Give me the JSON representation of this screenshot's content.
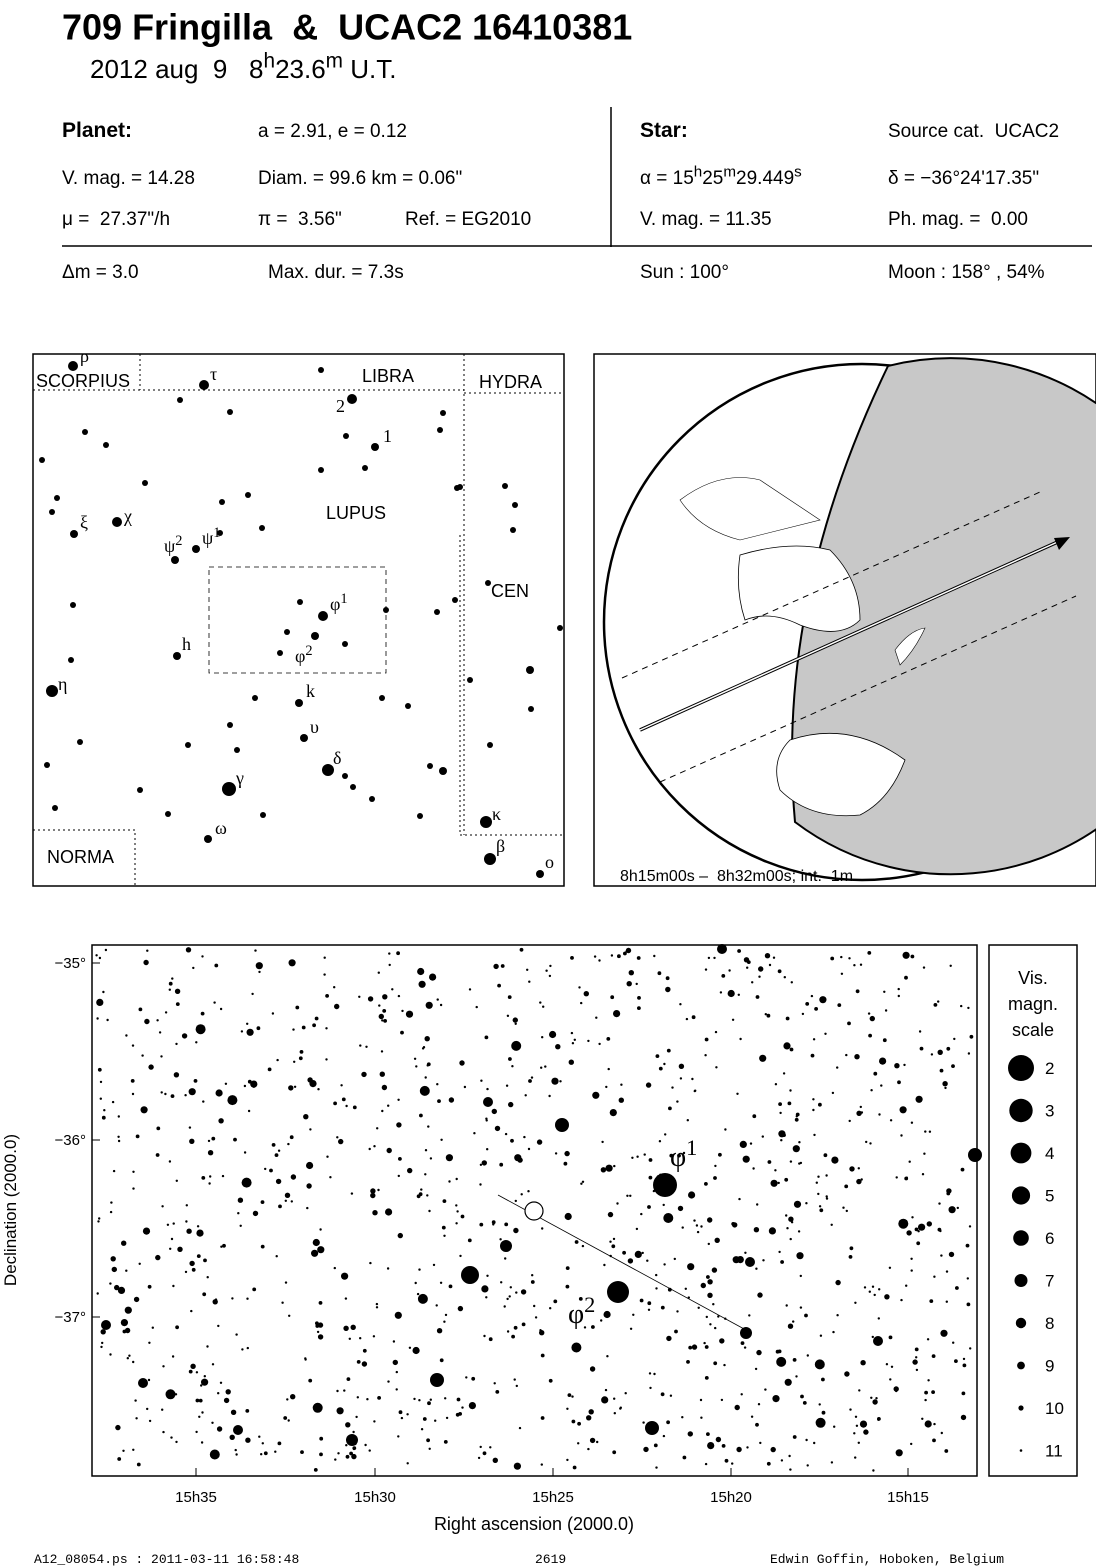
{
  "header": {
    "title": "709 Fringilla  &  UCAC2 16410381",
    "subtitle": [
      "2012 aug  9   8",
      "h",
      "23.6",
      "m",
      " U.T."
    ]
  },
  "info": {
    "planet": [
      [
        "Planet:",
        "a = 2.91, e = 0.12"
      ],
      [
        "V. mag. = 14.28",
        "Diam. = 99.6 km = 0.06\""
      ],
      [
        "μ =  27.37\"/h",
        "π =  3.56\"",
        "Ref. = EG2010"
      ]
    ],
    "star": [
      [
        "Star:",
        "Source cat.  UCAC2"
      ],
      [
        [
          "α = 15",
          "h",
          "25",
          "m",
          "29.449",
          "s"
        ],
        "δ = −36°24'17.35\""
      ],
      [
        "V. mag. = 11.35",
        "Ph. mag. =  0.00"
      ]
    ],
    "bottom": [
      "Δm = 3.0",
      "Max. dur. = 7.3s",
      "Sun : 100°",
      "Moon : 158° , 54%"
    ]
  },
  "const_map": {
    "regions": [
      "SCORPIUS",
      "LIBRA",
      "HYDRA",
      "LUPUS",
      "CEN",
      "NORMA"
    ],
    "stars": [
      [
        "ρ"
      ],
      [
        "τ"
      ],
      [
        "2"
      ],
      [
        "1"
      ],
      [
        "ξ"
      ],
      [
        "χ"
      ],
      [
        "ψ",
        "2"
      ],
      [
        "ψ",
        "1"
      ],
      [
        "φ",
        "1"
      ],
      [
        "φ",
        "2"
      ],
      [
        "h"
      ],
      [
        "η"
      ],
      [
        "k"
      ],
      [
        "υ"
      ],
      [
        "δ"
      ],
      [
        "γ"
      ],
      [
        "ω"
      ],
      [
        "κ"
      ],
      [
        "β"
      ],
      [
        "ο"
      ]
    ]
  },
  "globe": {
    "caption": "8h15m00s –  8h32m00s; int.  1m"
  },
  "chart": {
    "y_labels": [
      "−35°",
      "−36°",
      "−37°"
    ],
    "x_labels": [
      "15h35",
      "15h30",
      "15h25",
      "15h20",
      "15h15"
    ],
    "x_title": "Right ascension (2000.0)",
    "y_title": "Declination (2000.0)",
    "stars": [
      [
        "φ",
        "1"
      ],
      [
        "φ",
        "2"
      ]
    ]
  },
  "scale": {
    "title": [
      "Vis.",
      "magn.",
      "scale"
    ],
    "values": [
      2,
      3,
      4,
      5,
      6,
      7,
      8,
      9,
      10,
      11
    ]
  },
  "footer": [
    "A12_08054.ps : 2011-03-11 16:58:48",
    "2619",
    "Edwin Goffin, Hoboken, Belgium"
  ]
}
